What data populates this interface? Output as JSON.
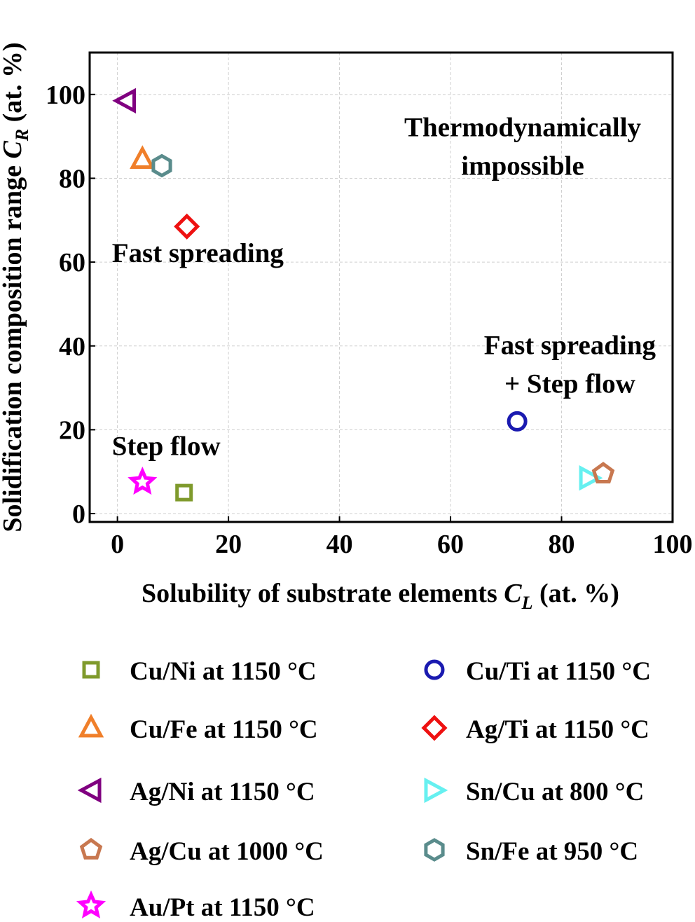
{
  "chart_data": {
    "type": "scatter",
    "xlabel_main": "Solubility of substrate elements",
    "xlabel_var": "C",
    "xlabel_sub": "L",
    "xlabel_unit": "(at. %)",
    "ylabel_main": "Solidification composition range",
    "ylabel_var": "C",
    "ylabel_sub": "R",
    "ylabel_unit": "(at. %)",
    "xlim": [
      -5,
      100
    ],
    "ylim": [
      -2,
      110
    ],
    "xticks": [
      0,
      20,
      40,
      60,
      80,
      100
    ],
    "yticks": [
      0,
      20,
      40,
      60,
      80,
      100
    ],
    "grid": true,
    "series": [
      {
        "name": "Cu/Ni at 1150 °C",
        "marker": "square",
        "color": "#7f9a2c",
        "x": 12,
        "y": 5
      },
      {
        "name": "Cu/Ti at 1150 °C",
        "marker": "circle",
        "color": "#1a1ab0",
        "x": 72,
        "y": 22
      },
      {
        "name": "Cu/Fe at 1150 °C",
        "marker": "triangle-up",
        "color": "#f07f2a",
        "x": 4.5,
        "y": 84.5
      },
      {
        "name": "Ag/Ti at 1150 °C",
        "marker": "diamond",
        "color": "#ee1111",
        "x": 12.5,
        "y": 68.5
      },
      {
        "name": "Ag/Ni at 1150 °C",
        "marker": "triangle-left",
        "color": "#800080",
        "x": 1.5,
        "y": 98.5
      },
      {
        "name": "Sn/Cu at 800 °C",
        "marker": "triangle-right",
        "color": "#66f0f0",
        "x": 85,
        "y": 8.5
      },
      {
        "name": "Ag/Cu at 1000 °C",
        "marker": "pentagon",
        "color": "#c87850",
        "x": 87.5,
        "y": 9.5
      },
      {
        "name": "Sn/Fe at 950 °C",
        "marker": "hexagon",
        "color": "#5a8c8c",
        "x": 8,
        "y": 83
      },
      {
        "name": "Au/Pt at 1150 °C",
        "marker": "star",
        "color": "#ff00ff",
        "x": 4.5,
        "y": 7.5
      }
    ],
    "annotations": [
      {
        "lines": [
          "Thermodynamically",
          "impossible"
        ],
        "x": 73,
        "y": 90,
        "anchor": "middle"
      },
      {
        "lines": [
          "Fast spreading"
        ],
        "x": -1,
        "y": 60,
        "anchor": "start"
      },
      {
        "lines": [
          "Fast spreading",
          "+ Step flow"
        ],
        "x": 81.5,
        "y": 38,
        "anchor": "middle"
      },
      {
        "lines": [
          "Step flow"
        ],
        "x": -1,
        "y": 14,
        "anchor": "start"
      }
    ]
  }
}
